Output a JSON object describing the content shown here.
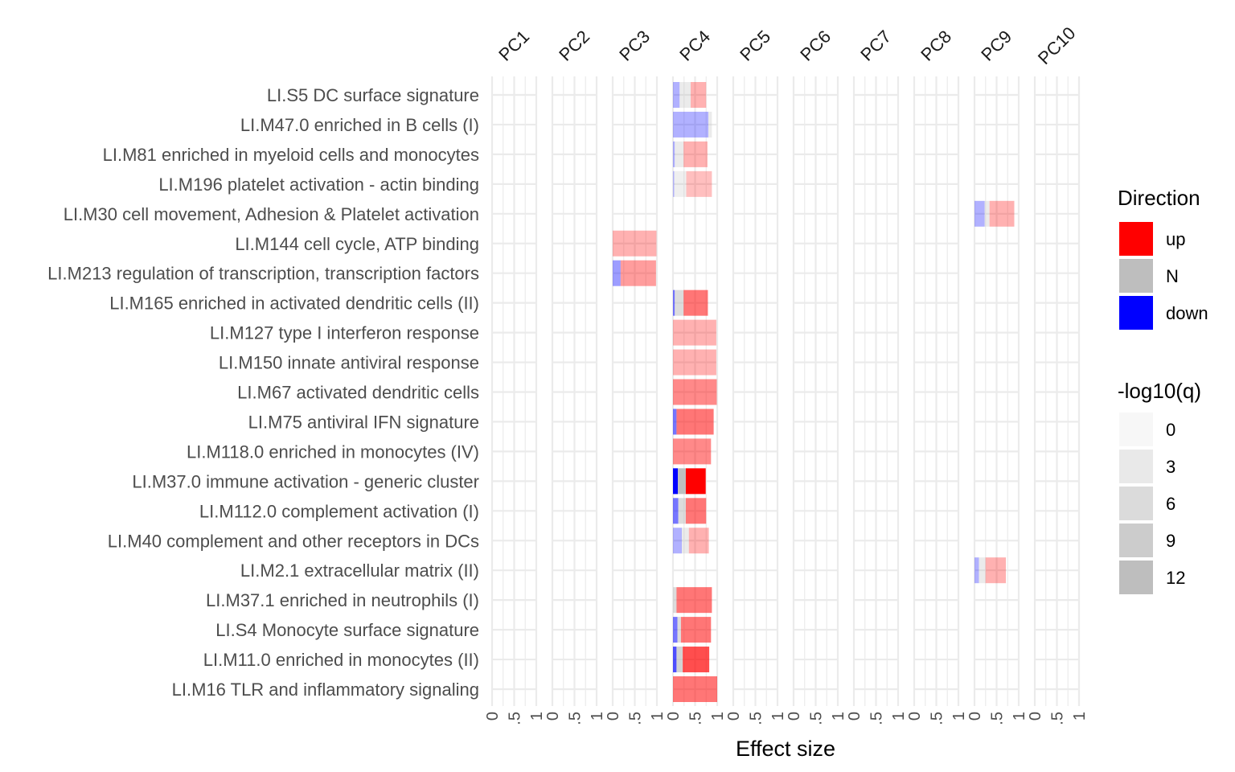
{
  "chart_data": {
    "type": "bar",
    "layout": "faceted stacked horizontal bars, one panel per principal component",
    "xlabel": "Effect size",
    "xlim": [
      0,
      1
    ],
    "x_ticks": [
      "0",
      ".5",
      "1"
    ],
    "grid": true,
    "facets": [
      "PC1",
      "PC2",
      "PC3",
      "PC4",
      "PC5",
      "PC6",
      "PC7",
      "PC8",
      "PC9",
      "PC10"
    ],
    "categories": [
      "LI.S5 DC surface signature",
      "LI.M47.0 enriched in B cells (I)",
      "LI.M81 enriched in myeloid cells and monocytes",
      "LI.M196 platelet activation - actin binding",
      "LI.M30 cell movement, Adhesion & Platelet activation",
      "LI.M144 cell cycle, ATP binding",
      "LI.M213 regulation of transcription, transcription factors",
      "LI.M165 enriched in activated dendritic cells (II)",
      "LI.M127 type I interferon response",
      "LI.M150 innate antiviral response",
      "LI.M67 activated dendritic cells",
      "LI.M75 antiviral IFN signature",
      "LI.M118.0 enriched in monocytes (IV)",
      "LI.M37.0 immune activation - generic cluster",
      "LI.M112.0 complement activation (I)",
      "LI.M40 complement and other receptors in DCs",
      "LI.M2.1 extracellular matrix (II)",
      "LI.M37.1 enriched in neutrophils (I)",
      "LI.S4 Monocyte surface signature",
      "LI.M11.0 enriched in monocytes (II)",
      "LI.M16 TLR and inflammatory signaling"
    ],
    "direction_colors": {
      "up": "#ff0000",
      "N": "#bebebe",
      "down": "#0000ff"
    },
    "bars": [
      {
        "category": "LI.S5 DC surface signature",
        "facet": "PC4",
        "down": 0.15,
        "N": 0.25,
        "up": 0.35,
        "neglog10q": 4
      },
      {
        "category": "LI.M47.0 enriched in B cells (I)",
        "facet": "PC4",
        "down": 0.8,
        "N": 0.08,
        "up": 0.0,
        "neglog10q": 4
      },
      {
        "category": "LI.M81 enriched in myeloid cells and monocytes",
        "facet": "PC4",
        "down": 0.04,
        "N": 0.2,
        "up": 0.54,
        "neglog10q": 4
      },
      {
        "category": "LI.M196 platelet activation - actin binding",
        "facet": "PC4",
        "down": 0.03,
        "N": 0.27,
        "up": 0.58,
        "neglog10q": 3
      },
      {
        "category": "LI.M30 cell movement, Adhesion & Platelet activation",
        "facet": "PC9",
        "down": 0.23,
        "N": 0.11,
        "up": 0.56,
        "neglog10q": 4
      },
      {
        "category": "LI.M144 cell cycle, ATP binding",
        "facet": "PC3",
        "down": 0.0,
        "N": 0.0,
        "up": 0.99,
        "neglog10q": 4
      },
      {
        "category": "LI.M213 regulation of transcription, transcription factors",
        "facet": "PC3",
        "down": 0.18,
        "N": 0.0,
        "up": 0.8,
        "neglog10q": 5
      },
      {
        "category": "LI.M165 enriched in activated dendritic cells (II)",
        "facet": "PC4",
        "down": 0.04,
        "N": 0.2,
        "up": 0.55,
        "neglog10q": 7
      },
      {
        "category": "LI.M127 type I interferon response",
        "facet": "PC4",
        "down": 0.0,
        "N": 0.0,
        "up": 0.98,
        "neglog10q": 4
      },
      {
        "category": "LI.M150 innate antiviral response",
        "facet": "PC4",
        "down": 0.0,
        "N": 0.0,
        "up": 0.98,
        "neglog10q": 4
      },
      {
        "category": "LI.M67 activated dendritic cells",
        "facet": "PC4",
        "down": 0.0,
        "N": 0.0,
        "up": 0.99,
        "neglog10q": 6
      },
      {
        "category": "LI.M75 antiviral IFN signature",
        "facet": "PC4",
        "down": 0.08,
        "N": 0.0,
        "up": 0.84,
        "neglog10q": 7
      },
      {
        "category": "LI.M118.0 enriched in monocytes (IV)",
        "facet": "PC4",
        "down": 0.0,
        "N": 0.0,
        "up": 0.86,
        "neglog10q": 6
      },
      {
        "category": "LI.M37.0 immune activation - generic cluster",
        "facet": "PC4",
        "down": 0.11,
        "N": 0.18,
        "up": 0.45,
        "neglog10q": 13
      },
      {
        "category": "LI.M112.0 complement activation (I)",
        "facet": "PC4",
        "down": 0.12,
        "N": 0.17,
        "up": 0.46,
        "neglog10q": 7
      },
      {
        "category": "LI.M40 complement and other receptors in DCs",
        "facet": "PC4",
        "down": 0.2,
        "N": 0.16,
        "up": 0.45,
        "neglog10q": 4
      },
      {
        "category": "LI.M2.1 extracellular matrix (II)",
        "facet": "PC9",
        "down": 0.1,
        "N": 0.15,
        "up": 0.46,
        "neglog10q": 4
      },
      {
        "category": "LI.M37.1 enriched in neutrophils (I)",
        "facet": "PC4",
        "down": 0.0,
        "N": 0.08,
        "up": 0.8,
        "neglog10q": 7
      },
      {
        "category": "LI.S4 Monocyte surface signature",
        "facet": "PC4",
        "down": 0.1,
        "N": 0.08,
        "up": 0.68,
        "neglog10q": 7
      },
      {
        "category": "LI.M11.0 enriched in monocytes (II)",
        "facet": "PC4",
        "down": 0.08,
        "N": 0.14,
        "up": 0.6,
        "neglog10q": 9
      },
      {
        "category": "LI.M16 TLR and inflammatory signaling",
        "facet": "PC4",
        "down": 0.0,
        "N": 0.0,
        "up": 1.0,
        "neglog10q": 7
      }
    ],
    "legend": {
      "placement": "right",
      "direction": {
        "title": "Direction",
        "entries": [
          "up",
          "N",
          "down"
        ]
      },
      "significance": {
        "title": "-log10(q)",
        "entries": [
          "0",
          "3",
          "6",
          "9",
          "12"
        ],
        "shades": [
          "#f7f7f7",
          "#e9e9e9",
          "#dbdbdb",
          "#cccccc",
          "#bebebe"
        ]
      }
    }
  }
}
